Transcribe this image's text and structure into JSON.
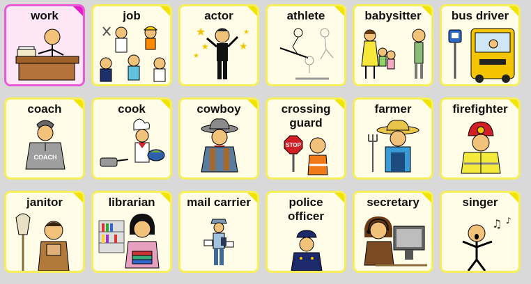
{
  "board": {
    "tiles": [
      {
        "label": "work",
        "icon": "work-icon",
        "selected": true
      },
      {
        "label": "job",
        "icon": "job-icon"
      },
      {
        "label": "actor",
        "icon": "actor-icon"
      },
      {
        "label": "athlete",
        "icon": "athlete-icon"
      },
      {
        "label": "babysitter",
        "icon": "babysitter-icon"
      },
      {
        "label": "bus driver",
        "icon": "bus-driver-icon"
      },
      {
        "label": "coach",
        "icon": "coach-icon"
      },
      {
        "label": "cook",
        "icon": "cook-icon"
      },
      {
        "label": "cowboy",
        "icon": "cowboy-icon"
      },
      {
        "label": "crossing\nguard",
        "icon": "crossing-guard-icon"
      },
      {
        "label": "farmer",
        "icon": "farmer-icon"
      },
      {
        "label": "firefighter",
        "icon": "firefighter-icon"
      },
      {
        "label": "janitor",
        "icon": "janitor-icon"
      },
      {
        "label": "librarian",
        "icon": "librarian-icon"
      },
      {
        "label": "mail carrier",
        "icon": "mail-carrier-icon"
      },
      {
        "label": "police\nofficer",
        "icon": "police-officer-icon"
      },
      {
        "label": "secretary",
        "icon": "secretary-icon"
      },
      {
        "label": "singer",
        "icon": "singer-icon"
      }
    ],
    "pictures": {
      "coach_shirt": "COACH",
      "stop_sign": "STOP"
    },
    "colors": {
      "tile_background": "#fffde7",
      "tile_border": "#f7ef5a",
      "selected_border": "#e85ad8",
      "skin": "#f2c27b",
      "page_background": "#d9d9d9"
    }
  }
}
